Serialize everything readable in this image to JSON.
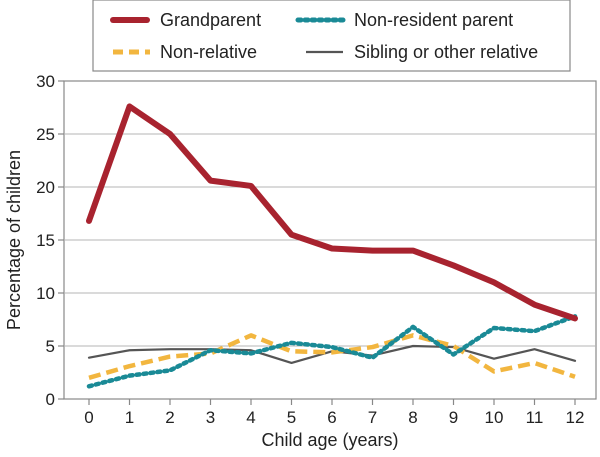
{
  "chart_data": {
    "type": "line",
    "title": "",
    "xlabel": "Child age (years)",
    "ylabel": "Percentage of children",
    "x": [
      0,
      1,
      2,
      3,
      4,
      5,
      6,
      7,
      8,
      9,
      10,
      11,
      12
    ],
    "xlim": [
      0,
      12
    ],
    "ylim": [
      0,
      30
    ],
    "yticks": [
      0,
      5,
      10,
      15,
      20,
      25,
      30
    ],
    "grid": true,
    "legend_position": "top",
    "series": [
      {
        "name": "Grandparent",
        "color": "#a8232f",
        "style": "solid-thick",
        "values": [
          16.8,
          27.6,
          25.0,
          20.6,
          20.1,
          15.5,
          14.2,
          14.0,
          14.0,
          12.6,
          11.0,
          8.9,
          7.6
        ]
      },
      {
        "name": "Non-resident parent",
        "color": "#1a8a96",
        "style": "dotted",
        "values": [
          1.2,
          2.2,
          2.7,
          4.6,
          4.3,
          5.3,
          4.9,
          3.9,
          6.8,
          4.2,
          6.7,
          6.4,
          7.8
        ]
      },
      {
        "name": "Non-relative",
        "color": "#f2b63f",
        "style": "dashed",
        "values": [
          2.0,
          3.1,
          4.0,
          4.3,
          6.0,
          4.5,
          4.4,
          4.9,
          6.0,
          5.0,
          2.6,
          3.4,
          2.1
        ]
      },
      {
        "name": "Sibling or other relative",
        "color": "#555555",
        "style": "solid-thin",
        "values": [
          3.9,
          4.6,
          4.7,
          4.7,
          4.6,
          3.4,
          4.5,
          4.1,
          5.0,
          4.9,
          3.8,
          4.7,
          3.6
        ]
      }
    ]
  }
}
